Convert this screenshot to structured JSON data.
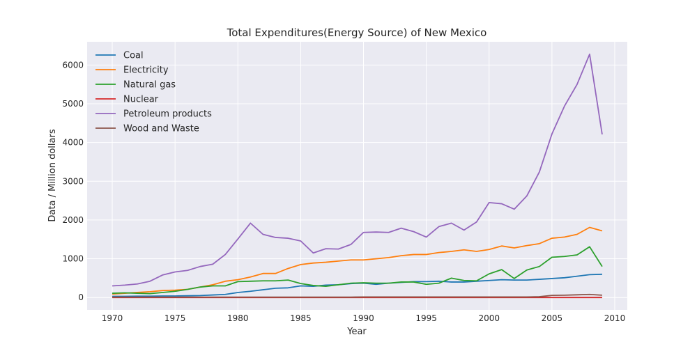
{
  "chart_data": {
    "type": "line",
    "title": "Total Expenditures(Energy Source) of New Mexico",
    "xlabel": "Year",
    "ylabel": "Data / Million dollars",
    "xlim": [
      1968,
      2011
    ],
    "ylim": [
      -320,
      6600
    ],
    "x_ticks": [
      1970,
      1975,
      1980,
      1985,
      1990,
      1995,
      2000,
      2005,
      2010
    ],
    "y_ticks": [
      0,
      1000,
      2000,
      3000,
      4000,
      5000,
      6000
    ],
    "grid": true,
    "legend_position": "top-left",
    "x": [
      1970,
      1971,
      1972,
      1973,
      1974,
      1975,
      1976,
      1977,
      1978,
      1979,
      1980,
      1981,
      1982,
      1983,
      1984,
      1985,
      1986,
      1987,
      1988,
      1989,
      1990,
      1991,
      1992,
      1993,
      1994,
      1995,
      1996,
      1997,
      1998,
      1999,
      2000,
      2001,
      2002,
      2003,
      2004,
      2005,
      2006,
      2007,
      2008,
      2009
    ],
    "series": [
      {
        "name": "Coal",
        "color": "#1f77b4",
        "values": [
          30,
          30,
          35,
          35,
          40,
          40,
          45,
          50,
          65,
          80,
          130,
          160,
          200,
          240,
          250,
          300,
          290,
          320,
          330,
          360,
          370,
          340,
          370,
          390,
          410,
          410,
          420,
          400,
          400,
          420,
          440,
          460,
          450,
          450,
          470,
          490,
          510,
          550,
          590,
          600
        ]
      },
      {
        "name": "Electricity",
        "color": "#ff7f0e",
        "values": [
          90,
          110,
          130,
          150,
          180,
          190,
          210,
          270,
          330,
          420,
          460,
          530,
          620,
          620,
          750,
          850,
          890,
          910,
          940,
          970,
          970,
          1000,
          1030,
          1080,
          1110,
          1110,
          1160,
          1190,
          1230,
          1190,
          1240,
          1330,
          1280,
          1340,
          1390,
          1530,
          1560,
          1630,
          1810,
          1720
        ]
      },
      {
        "name": "Natural gas",
        "color": "#2ca02c",
        "values": [
          110,
          120,
          110,
          100,
          130,
          160,
          210,
          270,
          300,
          300,
          410,
          420,
          430,
          430,
          450,
          360,
          310,
          290,
          330,
          370,
          380,
          370,
          370,
          400,
          400,
          340,
          370,
          500,
          440,
          430,
          610,
          720,
          490,
          710,
          800,
          1040,
          1060,
          1100,
          1310,
          800
        ]
      },
      {
        "name": "Nuclear",
        "color": "#d62728",
        "values": [
          0,
          0,
          0,
          0,
          0,
          0,
          0,
          0,
          0,
          0,
          0,
          0,
          0,
          0,
          0,
          0,
          0,
          0,
          0,
          0,
          0,
          0,
          0,
          0,
          0,
          0,
          0,
          0,
          0,
          0,
          0,
          0,
          0,
          0,
          0,
          0,
          0,
          0,
          0,
          0
        ]
      },
      {
        "name": "Petroleum products",
        "color": "#9467bd",
        "values": [
          300,
          320,
          350,
          420,
          580,
          660,
          700,
          800,
          860,
          1110,
          1510,
          1920,
          1630,
          1550,
          1530,
          1460,
          1150,
          1260,
          1250,
          1370,
          1680,
          1690,
          1680,
          1790,
          1700,
          1560,
          1830,
          1920,
          1740,
          1950,
          2450,
          2420,
          2280,
          2620,
          3240,
          4220,
          4940,
          5500,
          6280,
          4210
        ]
      },
      {
        "name": "Wood and Waste",
        "color": "#8c564b",
        "values": [
          10,
          10,
          10,
          10,
          10,
          10,
          10,
          10,
          10,
          10,
          10,
          10,
          10,
          10,
          10,
          10,
          10,
          10,
          10,
          10,
          15,
          15,
          15,
          15,
          15,
          15,
          15,
          15,
          15,
          15,
          15,
          15,
          15,
          15,
          20,
          55,
          60,
          70,
          80,
          60
        ]
      }
    ]
  }
}
